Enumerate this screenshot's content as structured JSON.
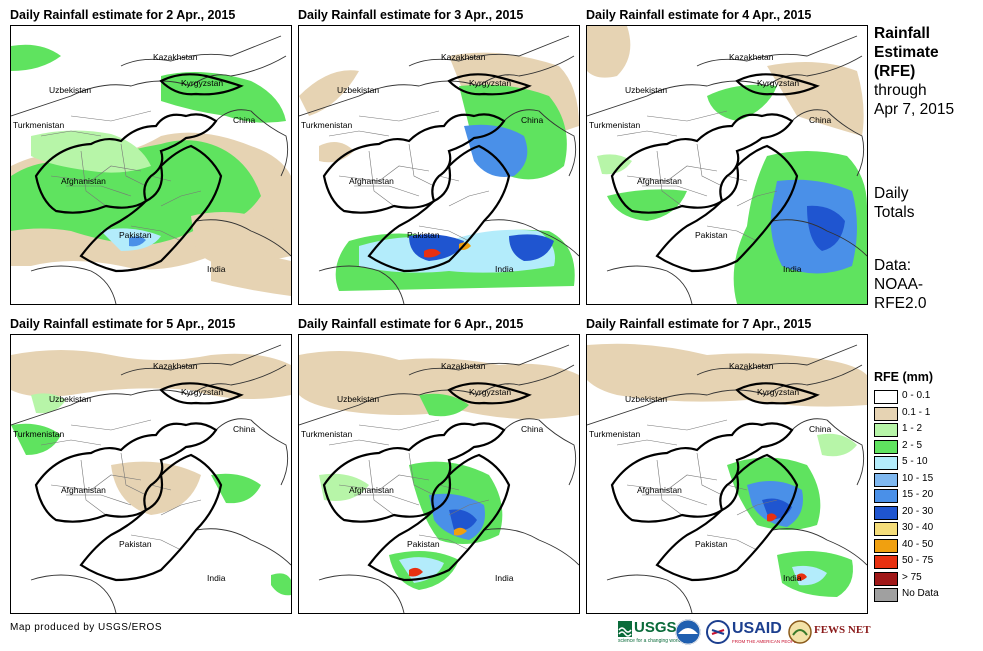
{
  "panels": [
    {
      "title": "Daily Rainfall estimate for 2 Apr., 2015",
      "pattern": "d2"
    },
    {
      "title": "Daily Rainfall estimate for 3 Apr., 2015",
      "pattern": "d3"
    },
    {
      "title": "Daily Rainfall estimate for 4 Apr., 2015",
      "pattern": "d4"
    },
    {
      "title": "Daily Rainfall estimate for 5 Apr., 2015",
      "pattern": "d5"
    },
    {
      "title": "Daily Rainfall estimate for 6 Apr., 2015",
      "pattern": "d6"
    },
    {
      "title": "Daily Rainfall estimate for 7 Apr., 2015",
      "pattern": "d7"
    }
  ],
  "map_labels": {
    "kazakhstan": "Kazakhstan",
    "uzbekistan": "Uzbekistan",
    "kyrgyzstan": "Kyrgyzstan",
    "turkmenistan": "Turkmenistan",
    "china": "China",
    "afghanistan": "Afghanistan",
    "pakistan": "Pakistan",
    "india": "India"
  },
  "side": {
    "line1": "Rainfall",
    "line2": "Estimate",
    "line3": "(RFE)",
    "line4": "through",
    "line5": "Apr 7, 2015",
    "daily1": "Daily",
    "daily2": "Totals",
    "data1": "Data:",
    "data2": "NOAA-",
    "data3": "RFE2.0"
  },
  "legend": {
    "title": "RFE (mm)",
    "items": [
      {
        "label": "0 - 0.1",
        "color": "#ffffff"
      },
      {
        "label": "0.1 - 1",
        "color": "#e6d3b3"
      },
      {
        "label": "1 - 2",
        "color": "#b7f5a8"
      },
      {
        "label": "2 - 5",
        "color": "#5fe35f"
      },
      {
        "label": "5 - 10",
        "color": "#b3ecfb"
      },
      {
        "label": "10 - 15",
        "color": "#7fb8f0"
      },
      {
        "label": "15 - 20",
        "color": "#4a90e8"
      },
      {
        "label": "20 - 30",
        "color": "#1f55d0"
      },
      {
        "label": "30 - 40",
        "color": "#f5dd7a"
      },
      {
        "label": "40 - 50",
        "color": "#f0a010"
      },
      {
        "label": "50 - 75",
        "color": "#e83010"
      },
      {
        "label": "> 75",
        "color": "#a01818"
      },
      {
        "label": "No Data",
        "color": "#a0a0a0"
      }
    ]
  },
  "footer": "Map produced by USGS/EROS",
  "logos": {
    "usgs": "USGS",
    "usgs_tag": "science for a changing world",
    "usaid": "USAID",
    "usaid_tag": "FROM THE AMERICAN PEOPLE",
    "fewsnet": "FEWS NET"
  }
}
